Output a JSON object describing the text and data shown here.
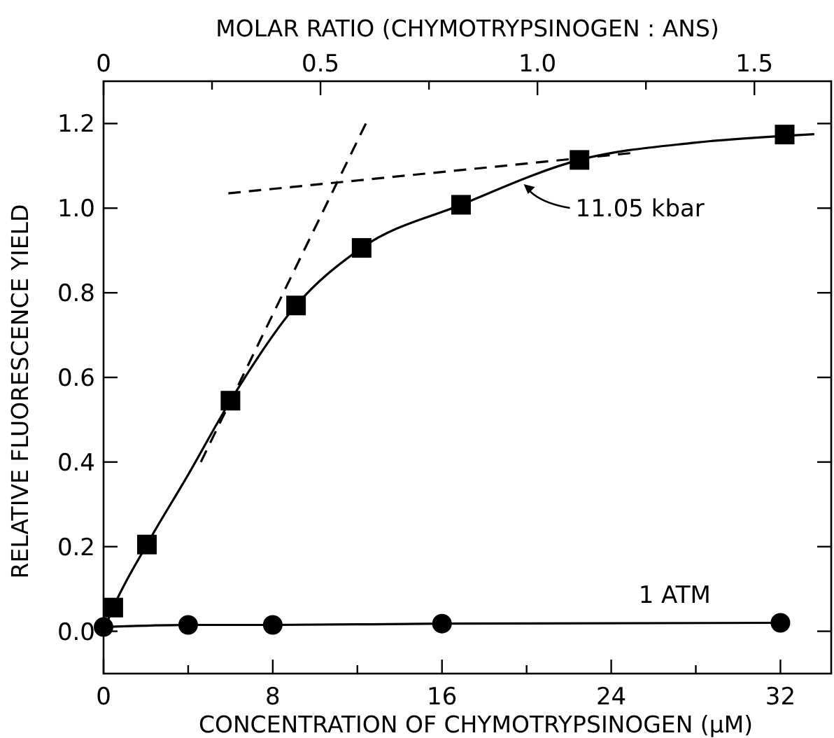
{
  "chart_data": {
    "type": "scatter",
    "xlabel": "CONCENTRATION OF CHYMOTRYPSINOGEN (μM)",
    "ylabel": "RELATIVE FLUORESCENCE YIELD",
    "x2label": "MOLAR RATIO (CHYMOTRYPSINOGEN : ANS)",
    "xlim": [
      0,
      34.4
    ],
    "xticks": [
      0,
      {
        "value": 4,
        "label": null
      },
      8,
      {
        "value": 12,
        "label": null
      },
      16,
      {
        "value": 20,
        "label": null
      },
      24,
      {
        "value": 28,
        "label": null
      },
      32
    ],
    "x2lim": [
      0,
      1.677
    ],
    "x2ticks": [
      0,
      {
        "value": 0.25,
        "label": null
      },
      0.5,
      {
        "value": 0.75,
        "label": null
      },
      {
        "value": 1,
        "label": "1.0"
      },
      {
        "value": 1.25,
        "label": null
      },
      1.5
    ],
    "ylim": [
      -0.1,
      1.3
    ],
    "yticks": [
      {
        "value": 0,
        "label": "0.0"
      },
      0.2,
      0.4,
      0.6,
      0.8,
      {
        "value": 1,
        "label": "1.0"
      },
      1.2
    ],
    "grid": false,
    "series": [
      {
        "type": "line",
        "color": "#000000",
        "marker": "none",
        "line_style": "solid",
        "x": [
          0,
          0.46,
          2.05,
          4,
          6.0,
          9.1,
          12.2,
          16.9,
          22.5,
          28,
          33.6
        ],
        "values": [
          0,
          0.056,
          0.205,
          0.37,
          0.545,
          0.77,
          0.906,
          1.008,
          1.114,
          1.155,
          1.175
        ]
      },
      {
        "color": "#000000",
        "marker": "square",
        "x": [
          0.46,
          2.05,
          6.0,
          9.1,
          12.2,
          16.9,
          22.5,
          32.2
        ],
        "values": [
          0.056,
          0.205,
          0.545,
          0.77,
          0.906,
          1.008,
          1.114,
          1.174
        ]
      },
      {
        "type": "line",
        "color": "#000000",
        "marker": "circle",
        "line_style": "solid",
        "x": [
          0,
          4,
          8,
          16,
          32
        ],
        "values": [
          0.01,
          0.015,
          0.015,
          0.018,
          0.02
        ]
      },
      {
        "type": "line",
        "color": "#000000",
        "marker": "none",
        "line_style": "dashed",
        "x": [
          4.6,
          12.4
        ],
        "values": [
          0.4,
          1.2
        ]
      },
      {
        "type": "line",
        "color": "#000000",
        "marker": "none",
        "line_style": "dashed",
        "x": [
          5.9,
          24.9
        ],
        "values": [
          1.035,
          1.13
        ]
      }
    ],
    "annotations": [
      {
        "text": "11.05 kbar",
        "x": 19.8,
        "y": 1.06
      },
      {
        "text": "1 ATM",
        "x": 27,
        "y": 0.02
      }
    ]
  }
}
